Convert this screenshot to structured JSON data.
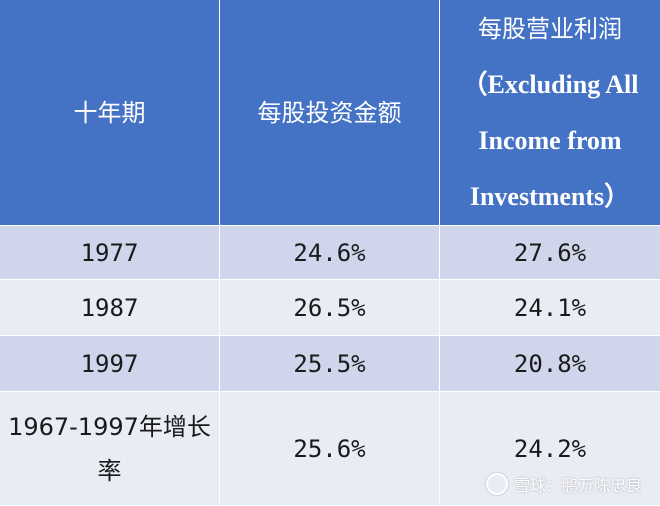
{
  "table": {
    "headers": {
      "col1": "十年期",
      "col2": "每股投资金额",
      "col3_lines": [
        "每股营业利润",
        "（Excluding All",
        "Income from",
        "Investments）"
      ]
    },
    "rows": [
      {
        "period": "1977",
        "investment": "24.6%",
        "profit": "27.6%"
      },
      {
        "period": "1987",
        "investment": "26.5%",
        "profit": "24.1%"
      },
      {
        "period": "1997",
        "investment": "25.5%",
        "profit": "20.8%"
      },
      {
        "period": "1967-1997年增长率",
        "investment": "25.6%",
        "profit": "24.2%"
      }
    ]
  },
  "watermark": {
    "text": "雪球：鹏万陈忠良"
  },
  "colors": {
    "header_bg": "#4472c4",
    "row_dark": "#cfd5ea",
    "row_light": "#e9ebf5"
  }
}
